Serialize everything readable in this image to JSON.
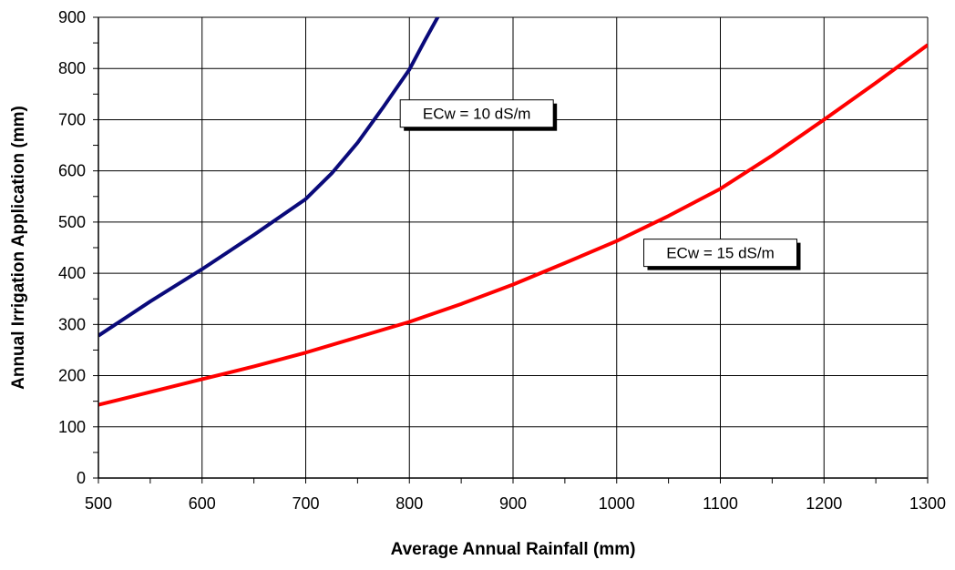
{
  "chart_data": {
    "type": "line",
    "title": "",
    "xlabel": "Average Annual Rainfall (mm)",
    "ylabel": "Annual Irrigation Application (mm)",
    "xlim": [
      500,
      1300
    ],
    "ylim": [
      0,
      900
    ],
    "xticks": [
      500,
      600,
      700,
      800,
      900,
      1000,
      1100,
      1200,
      1300
    ],
    "yticks": [
      0,
      100,
      200,
      300,
      400,
      500,
      600,
      700,
      800,
      900
    ],
    "grid": true,
    "legend": "none",
    "series": [
      {
        "color": "#0a0a7a",
        "x": [
          500,
          550,
          600,
          650,
          700,
          725,
          750,
          775,
          800,
          815,
          830
        ],
        "y": [
          278,
          345,
          408,
          475,
          545,
          595,
          655,
          725,
          798,
          855,
          910
        ]
      },
      {
        "color": "#ff0000",
        "x": [
          500,
          550,
          600,
          650,
          700,
          750,
          800,
          850,
          900,
          950,
          1000,
          1050,
          1100,
          1150,
          1200,
          1250,
          1300
        ],
        "y": [
          143,
          168,
          193,
          218,
          245,
          275,
          305,
          340,
          378,
          420,
          463,
          512,
          565,
          630,
          700,
          772,
          846
        ]
      }
    ],
    "annotations": [
      {
        "text": "ECw = 10 dS/m",
        "x": 865,
        "y": 712
      },
      {
        "text": "ECw = 15 dS/m",
        "x": 1100,
        "y": 440
      }
    ]
  }
}
